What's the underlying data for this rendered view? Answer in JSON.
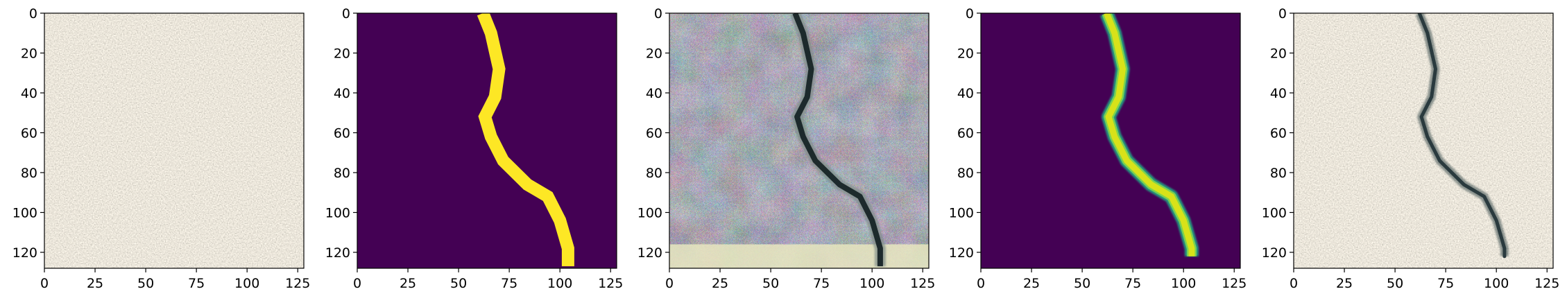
{
  "chart_data": [
    {
      "type": "image",
      "content": "concrete surface photo",
      "xlim": [
        0,
        128
      ],
      "ylim": [
        128,
        0
      ],
      "xticks": [
        0,
        25,
        50,
        75,
        100,
        125
      ],
      "yticks": [
        0,
        20,
        40,
        60,
        80,
        100,
        120
      ]
    },
    {
      "type": "heatmap",
      "content": "binary crack mask",
      "colormap": "viridis",
      "background_color": "#440154",
      "crack_color": "#fde725",
      "xlim": [
        0,
        128
      ],
      "ylim": [
        128,
        0
      ],
      "xticks": [
        0,
        25,
        50,
        75,
        100,
        125
      ],
      "yticks": [
        0,
        20,
        40,
        60,
        80,
        100,
        120
      ],
      "crack_path": [
        [
          62,
          0
        ],
        [
          66,
          10
        ],
        [
          70,
          28
        ],
        [
          68,
          42
        ],
        [
          63,
          52
        ],
        [
          66,
          62
        ],
        [
          72,
          74
        ],
        [
          84,
          86
        ],
        [
          94,
          92
        ],
        [
          100,
          104
        ],
        [
          104,
          118
        ],
        [
          104,
          127
        ]
      ]
    },
    {
      "type": "image",
      "content": "generated concrete texture with crack",
      "xlim": [
        0,
        128
      ],
      "ylim": [
        128,
        0
      ],
      "xticks": [
        0,
        25,
        50,
        75,
        100,
        125
      ],
      "yticks": [
        0,
        20,
        40,
        60,
        80,
        100,
        120
      ],
      "crack_path": [
        [
          62,
          0
        ],
        [
          66,
          10
        ],
        [
          70,
          28
        ],
        [
          68,
          42
        ],
        [
          63,
          52
        ],
        [
          66,
          62
        ],
        [
          72,
          74
        ],
        [
          84,
          86
        ],
        [
          94,
          92
        ],
        [
          100,
          104
        ],
        [
          104,
          118
        ],
        [
          104,
          127
        ]
      ]
    },
    {
      "type": "heatmap",
      "content": "predicted crack mask",
      "colormap": "viridis",
      "background_color": "#440154",
      "crack_color": "#d8e219",
      "xlim": [
        0,
        128
      ],
      "ylim": [
        128,
        0
      ],
      "xticks": [
        0,
        25,
        50,
        75,
        100,
        125
      ],
      "yticks": [
        0,
        20,
        40,
        60,
        80,
        100,
        120
      ],
      "crack_path": [
        [
          62,
          0
        ],
        [
          66,
          10
        ],
        [
          70,
          28
        ],
        [
          68,
          42
        ],
        [
          63,
          52
        ],
        [
          66,
          62
        ],
        [
          72,
          74
        ],
        [
          84,
          86
        ],
        [
          94,
          92
        ],
        [
          100,
          104
        ],
        [
          104,
          118
        ],
        [
          104,
          122
        ]
      ]
    },
    {
      "type": "image",
      "content": "concrete surface photo with crack overlay",
      "xlim": [
        0,
        128
      ],
      "ylim": [
        128,
        0
      ],
      "xticks": [
        0,
        25,
        50,
        75,
        100,
        125
      ],
      "yticks": [
        0,
        20,
        40,
        60,
        80,
        100,
        120
      ],
      "crack_path": [
        [
          62,
          0
        ],
        [
          66,
          10
        ],
        [
          70,
          28
        ],
        [
          68,
          42
        ],
        [
          63,
          52
        ],
        [
          66,
          62
        ],
        [
          72,
          74
        ],
        [
          84,
          86
        ],
        [
          94,
          92
        ],
        [
          100,
          104
        ],
        [
          104,
          118
        ],
        [
          104,
          122
        ]
      ]
    }
  ]
}
